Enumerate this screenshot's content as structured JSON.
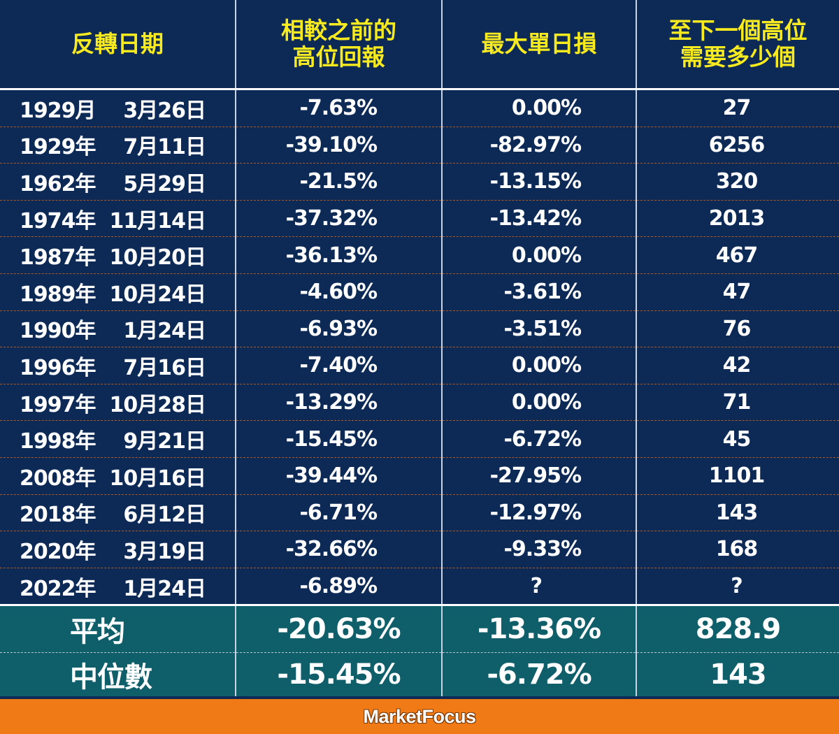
{
  "table": {
    "headers": [
      {
        "lines": [
          "反轉日期"
        ]
      },
      {
        "lines": [
          "相較之前的",
          "高位回報"
        ]
      },
      {
        "lines": [
          "最大單日損"
        ]
      },
      {
        "lines": [
          "至下一個高位",
          "需要多少個"
        ]
      }
    ],
    "rows": [
      {
        "year": "1929月",
        "date": "3月26日",
        "return": "-7.63%",
        "max_loss": "0.00%",
        "days": "27"
      },
      {
        "year": "1929年",
        "date": "7月11日",
        "return": "-39.10%",
        "max_loss": "-82.97%",
        "days": "6256"
      },
      {
        "year": "1962年",
        "date": "5月29日",
        "return": "-21.5%",
        "max_loss": "-13.15%",
        "days": "320"
      },
      {
        "year": "1974年",
        "date": "11月14日",
        "return": "-37.32%",
        "max_loss": "-13.42%",
        "days": "2013"
      },
      {
        "year": "1987年",
        "date": "10月20日",
        "return": "-36.13%",
        "max_loss": "0.00%",
        "days": "467"
      },
      {
        "year": "1989年",
        "date": "10月24日",
        "return": "-4.60%",
        "max_loss": "-3.61%",
        "days": "47"
      },
      {
        "year": "1990年",
        "date": "1月24日",
        "return": "-6.93%",
        "max_loss": "-3.51%",
        "days": "76"
      },
      {
        "year": "1996年",
        "date": "7月16日",
        "return": "-7.40%",
        "max_loss": "0.00%",
        "days": "42"
      },
      {
        "year": "1997年",
        "date": "10月28日",
        "return": "-13.29%",
        "max_loss": "0.00%",
        "days": "71"
      },
      {
        "year": "1998年",
        "date": "9月21日",
        "return": "-15.45%",
        "max_loss": "-6.72%",
        "days": "45"
      },
      {
        "year": "2008年",
        "date": "10月16日",
        "return": "-39.44%",
        "max_loss": "-27.95%",
        "days": "1101"
      },
      {
        "year": "2018年",
        "date": "6月12日",
        "return": "-6.71%",
        "max_loss": "-12.97%",
        "days": "143"
      },
      {
        "year": "2020年",
        "date": "3月19日",
        "return": "-32.66%",
        "max_loss": "-9.33%",
        "days": "168"
      },
      {
        "year": "2022年",
        "date": "1月24日",
        "return": "-6.89%",
        "max_loss": "?",
        "days": "?"
      }
    ],
    "summary": [
      {
        "label": "平均",
        "return": "-20.63%",
        "max_loss": "-13.36%",
        "days": "828.9"
      },
      {
        "label": "中位數",
        "return": "-15.45%",
        "max_loss": "-6.72%",
        "days": "143"
      }
    ]
  },
  "footer": {
    "brand": "MarketFocus"
  },
  "colors": {
    "background": "#0d2a57",
    "header_text": "#f7ea1e",
    "summary_background": "#0f5f6a",
    "footer_background": "#f07a16",
    "row_separator": "#b05a1e"
  }
}
